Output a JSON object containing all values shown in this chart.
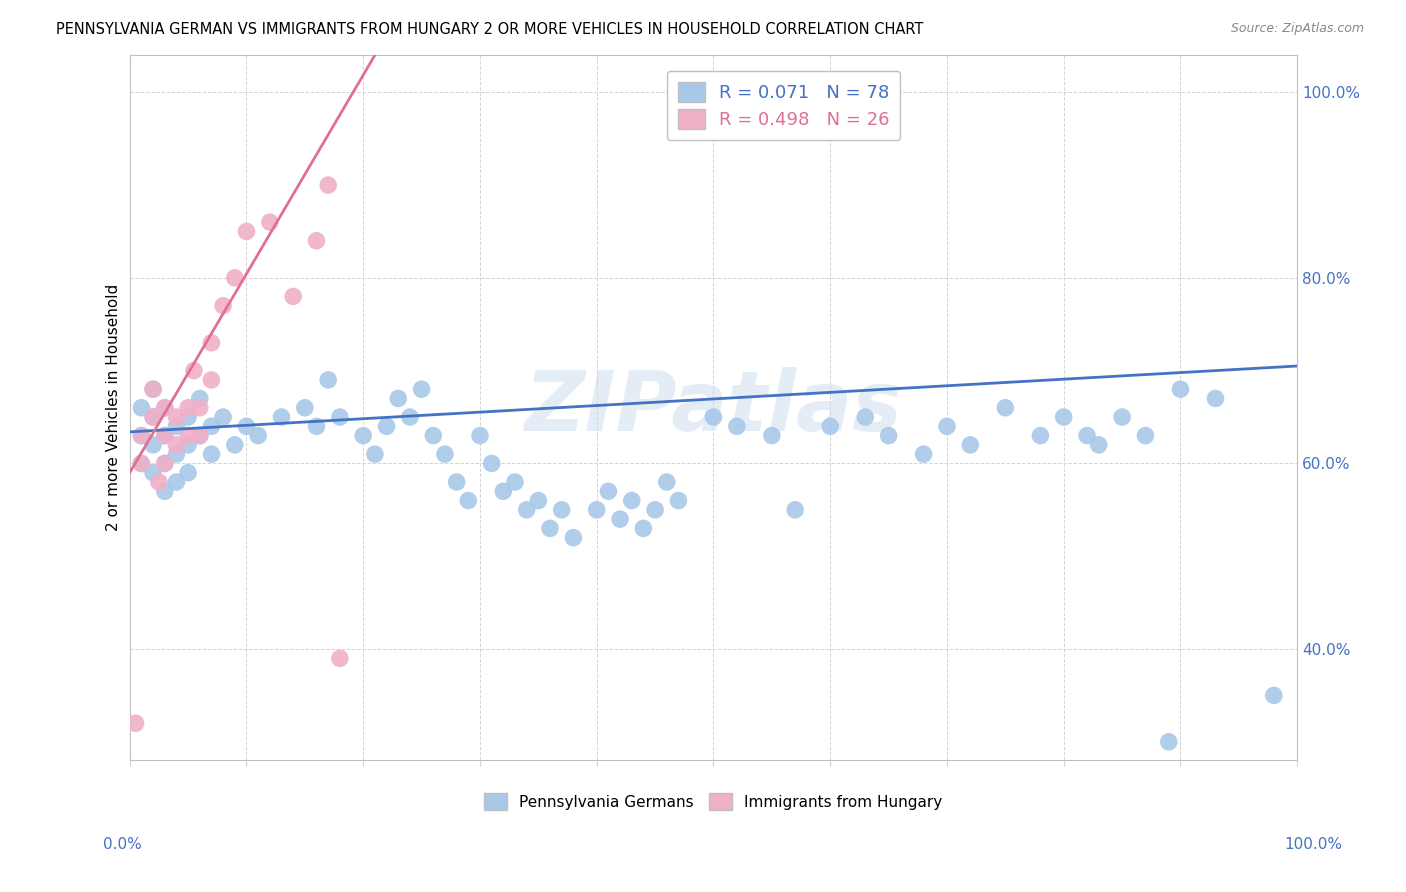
{
  "title": "PENNSYLVANIA GERMAN VS IMMIGRANTS FROM HUNGARY 2 OR MORE VEHICLES IN HOUSEHOLD CORRELATION CHART",
  "source": "Source: ZipAtlas.com",
  "ylabel": "2 or more Vehicles in Household",
  "blue_R": 0.071,
  "blue_N": 78,
  "pink_R": 0.498,
  "pink_N": 26,
  "blue_color": "#a8c8e8",
  "pink_color": "#f0b0c8",
  "blue_line_color": "#4472c4",
  "pink_line_color": "#e07090",
  "watermark": "ZIPatlas",
  "xlim": [
    0.0,
    1.0
  ],
  "ylim": [
    0.28,
    1.04
  ],
  "yticks": [
    0.4,
    0.6,
    0.8,
    1.0
  ],
  "ytick_labels": [
    "40.0%",
    "60.0%",
    "80.0%",
    "100.0%"
  ],
  "blue_x": [
    0.01,
    0.01,
    0.01,
    0.02,
    0.02,
    0.02,
    0.02,
    0.03,
    0.03,
    0.03,
    0.03,
    0.04,
    0.04,
    0.04,
    0.05,
    0.05,
    0.05,
    0.06,
    0.06,
    0.07,
    0.07,
    0.08,
    0.09,
    0.1,
    0.11,
    0.13,
    0.15,
    0.16,
    0.17,
    0.18,
    0.2,
    0.21,
    0.22,
    0.23,
    0.24,
    0.25,
    0.26,
    0.27,
    0.28,
    0.29,
    0.3,
    0.31,
    0.32,
    0.33,
    0.34,
    0.35,
    0.36,
    0.37,
    0.38,
    0.4,
    0.41,
    0.42,
    0.43,
    0.44,
    0.45,
    0.46,
    0.47,
    0.5,
    0.52,
    0.55,
    0.57,
    0.6,
    0.63,
    0.65,
    0.68,
    0.7,
    0.72,
    0.75,
    0.78,
    0.8,
    0.82,
    0.83,
    0.85,
    0.87,
    0.89,
    0.9,
    0.93,
    0.98
  ],
  "blue_y": [
    0.66,
    0.63,
    0.6,
    0.68,
    0.65,
    0.62,
    0.59,
    0.66,
    0.63,
    0.6,
    0.57,
    0.64,
    0.61,
    0.58,
    0.65,
    0.62,
    0.59,
    0.67,
    0.63,
    0.64,
    0.61,
    0.65,
    0.62,
    0.64,
    0.63,
    0.65,
    0.66,
    0.64,
    0.69,
    0.65,
    0.63,
    0.61,
    0.64,
    0.67,
    0.65,
    0.68,
    0.63,
    0.61,
    0.58,
    0.56,
    0.63,
    0.6,
    0.57,
    0.58,
    0.55,
    0.56,
    0.53,
    0.55,
    0.52,
    0.55,
    0.57,
    0.54,
    0.56,
    0.53,
    0.55,
    0.58,
    0.56,
    0.65,
    0.64,
    0.63,
    0.55,
    0.64,
    0.65,
    0.63,
    0.61,
    0.64,
    0.62,
    0.66,
    0.63,
    0.65,
    0.63,
    0.62,
    0.65,
    0.63,
    0.3,
    0.68,
    0.67,
    0.35
  ],
  "pink_x": [
    0.005,
    0.01,
    0.01,
    0.02,
    0.02,
    0.025,
    0.03,
    0.03,
    0.03,
    0.04,
    0.04,
    0.05,
    0.05,
    0.055,
    0.06,
    0.06,
    0.07,
    0.07,
    0.08,
    0.09,
    0.1,
    0.12,
    0.14,
    0.16,
    0.17,
    0.18
  ],
  "pink_y": [
    0.32,
    0.63,
    0.6,
    0.65,
    0.68,
    0.58,
    0.66,
    0.63,
    0.6,
    0.65,
    0.62,
    0.66,
    0.63,
    0.7,
    0.66,
    0.63,
    0.69,
    0.73,
    0.77,
    0.8,
    0.85,
    0.86,
    0.78,
    0.84,
    0.9,
    0.39
  ],
  "blue_line_x": [
    0.0,
    1.0
  ],
  "blue_line_y": [
    0.634,
    0.705
  ],
  "pink_line_x": [
    0.0,
    0.21
  ],
  "pink_line_y": [
    0.59,
    1.04
  ]
}
